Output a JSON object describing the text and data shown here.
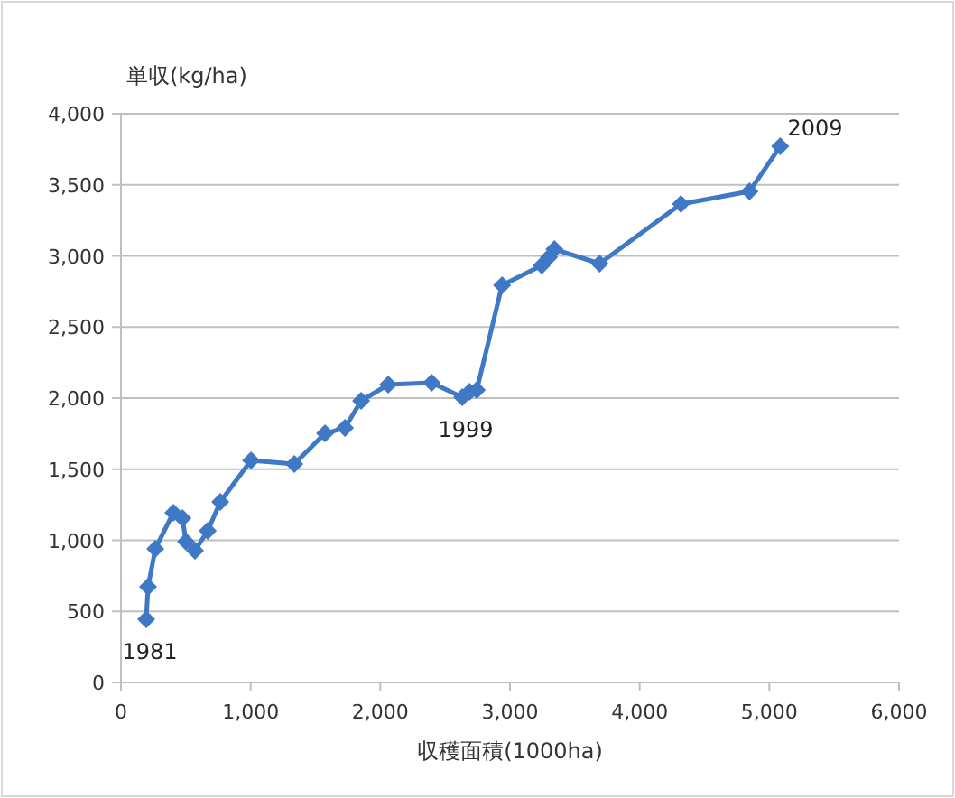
{
  "chart_data": {
    "type": "line",
    "ylabel": "単収(kg/ha)",
    "xlabel": "収穫面積(1000ha)",
    "x": [
      195,
      209,
      265,
      404,
      474,
      501,
      571,
      669,
      766,
      1003,
      1337,
      1574,
      1727,
      1852,
      2061,
      2396,
      2632,
      2688,
      2744,
      2939,
      3245,
      3300,
      3343,
      3691,
      4318,
      4847,
      5084
    ],
    "series": [
      {
        "color": "#3f78c4",
        "values": [
          444,
          673,
          940,
          1194,
          1156,
          990,
          927,
          1067,
          1270,
          1562,
          1537,
          1752,
          1790,
          1981,
          2095,
          2108,
          2006,
          2045,
          2057,
          2794,
          2933,
          2990,
          3047,
          2946,
          3365,
          3454,
          3771
        ]
      }
    ],
    "xlim": [
      0,
      6000
    ],
    "xticks": [
      {
        "value": 0,
        "label": "0"
      },
      {
        "value": 1000,
        "label": "1,000"
      },
      {
        "value": 2000,
        "label": "2,000"
      },
      {
        "value": 3000,
        "label": "3,000"
      },
      {
        "value": 4000,
        "label": "4,000"
      },
      {
        "value": 5000,
        "label": "5,000"
      },
      {
        "value": 6000,
        "label": "6,000"
      }
    ],
    "ylim": [
      0,
      4000
    ],
    "yticks": [
      {
        "value": 0,
        "label": "0"
      },
      {
        "value": 500,
        "label": "500"
      },
      {
        "value": 1000,
        "label": "1,000"
      },
      {
        "value": 1500,
        "label": "1,500"
      },
      {
        "value": 2000,
        "label": "2,000"
      },
      {
        "value": 2500,
        "label": "2,500"
      },
      {
        "value": 3000,
        "label": "3,000"
      },
      {
        "value": 3500,
        "label": "3,500"
      },
      {
        "value": 4000,
        "label": "4,000"
      }
    ],
    "grid": "y",
    "marker": "diamond",
    "line_style": "solid",
    "annotations": [
      {
        "text": "1981",
        "x": 195,
        "y": 444
      },
      {
        "text": "1999",
        "x": 2632,
        "y": 2006
      },
      {
        "text": "2009",
        "x": 5084,
        "y": 3771
      }
    ]
  }
}
